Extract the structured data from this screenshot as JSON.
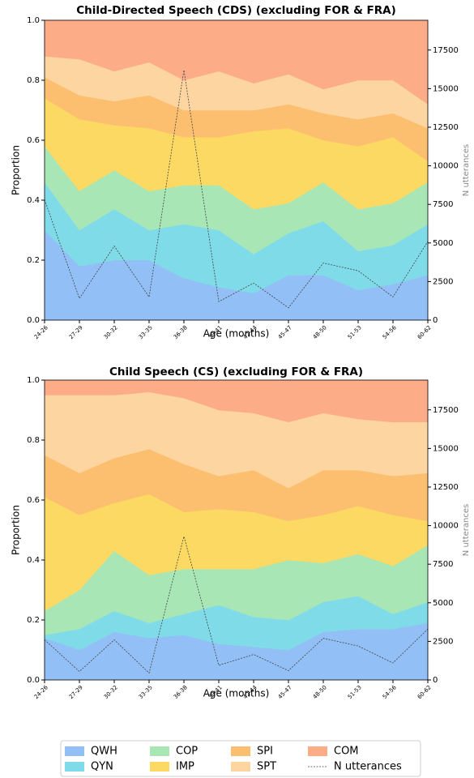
{
  "chart_data": [
    {
      "type": "stacked_area",
      "title": "Child-Directed Speech (CDS) (excluding FOR & FRA)",
      "xlabel": "Age (months)",
      "ylabel": "Proportion",
      "y2label": "N utterances",
      "categories": [
        "24-26",
        "27-29",
        "30-32",
        "33-35",
        "36-38",
        "39-41",
        "42-44",
        "45-47",
        "48-50",
        "51-53",
        "54-56",
        "60-62"
      ],
      "ylim": [
        0,
        1
      ],
      "yticks": [
        {
          "value": 0,
          "label": "0.0"
        },
        0.2,
        0.4,
        0.6,
        0.8,
        {
          "value": 1,
          "label": "1.0"
        }
      ],
      "y2lim": [
        0,
        19430
      ],
      "y2ticks": [
        0,
        2500,
        5000,
        7500,
        10000,
        12500,
        15000,
        17500
      ],
      "series": [
        {
          "name": "QWH",
          "color": "#92bff5",
          "values": [
            0.3,
            0.18,
            0.2,
            0.2,
            0.14,
            0.11,
            0.09,
            0.15,
            0.15,
            0.1,
            0.12,
            0.15
          ]
        },
        {
          "name": "QYN",
          "color": "#80dbe8",
          "values": [
            0.16,
            0.12,
            0.17,
            0.1,
            0.18,
            0.19,
            0.13,
            0.14,
            0.18,
            0.13,
            0.13,
            0.17
          ]
        },
        {
          "name": "COP",
          "color": "#a9e6b5",
          "values": [
            0.12,
            0.13,
            0.13,
            0.13,
            0.13,
            0.15,
            0.15,
            0.1,
            0.13,
            0.14,
            0.14,
            0.14
          ]
        },
        {
          "name": "IMP",
          "color": "#fcd962",
          "values": [
            0.16,
            0.24,
            0.15,
            0.21,
            0.16,
            0.16,
            0.26,
            0.25,
            0.14,
            0.21,
            0.22,
            0.07
          ]
        },
        {
          "name": "SPI",
          "color": "#fcbf70",
          "values": [
            0.07,
            0.08,
            0.08,
            0.11,
            0.09,
            0.09,
            0.07,
            0.08,
            0.09,
            0.09,
            0.08,
            0.11
          ]
        },
        {
          "name": "SPT",
          "color": "#fdd5a0",
          "values": [
            0.07,
            0.12,
            0.1,
            0.11,
            0.1,
            0.13,
            0.09,
            0.1,
            0.08,
            0.13,
            0.11,
            0.08
          ]
        },
        {
          "name": "COM",
          "color": "#fdac88",
          "values": [
            0.12,
            0.13,
            0.17,
            0.14,
            0.2,
            0.17,
            0.21,
            0.18,
            0.23,
            0.2,
            0.2,
            0.28
          ]
        },
        {
          "name": "N utterances",
          "color": "#444444",
          "axis": "y2",
          "values": [
            7800,
            1400,
            4800,
            1500,
            16200,
            1200,
            2400,
            800,
            3700,
            3200,
            1500,
            5100
          ]
        }
      ]
    },
    {
      "type": "stacked_area",
      "title": "Child Speech (CS) (excluding FOR & FRA)",
      "xlabel": "Age (months)",
      "ylabel": "Proportion",
      "y2label": "N utterances",
      "categories": [
        "24-26",
        "27-29",
        "30-32",
        "33-35",
        "36-38",
        "39-41",
        "42-44",
        "45-47",
        "48-50",
        "51-53",
        "54-56",
        "60-62"
      ],
      "ylim": [
        0,
        1
      ],
      "yticks": [
        {
          "value": 0,
          "label": "0.0"
        },
        0.2,
        0.4,
        0.6,
        0.8,
        {
          "value": 1,
          "label": "1.0"
        }
      ],
      "y2lim": [
        0,
        19430
      ],
      "y2ticks": [
        0,
        2500,
        5000,
        7500,
        10000,
        12500,
        15000,
        17500
      ],
      "series": [
        {
          "name": "QWH",
          "color": "#92bff5",
          "values": [
            0.14,
            0.1,
            0.16,
            0.14,
            0.15,
            0.12,
            0.11,
            0.1,
            0.16,
            0.17,
            0.17,
            0.19
          ]
        },
        {
          "name": "QYN",
          "color": "#80dbe8",
          "values": [
            0.01,
            0.07,
            0.07,
            0.05,
            0.07,
            0.13,
            0.1,
            0.1,
            0.1,
            0.11,
            0.05,
            0.07
          ]
        },
        {
          "name": "COP",
          "color": "#a9e6b5",
          "values": [
            0.08,
            0.13,
            0.2,
            0.16,
            0.15,
            0.12,
            0.16,
            0.2,
            0.13,
            0.14,
            0.16,
            0.19
          ]
        },
        {
          "name": "IMP",
          "color": "#fcd962",
          "values": [
            0.38,
            0.25,
            0.16,
            0.27,
            0.19,
            0.2,
            0.19,
            0.13,
            0.16,
            0.16,
            0.17,
            0.08
          ]
        },
        {
          "name": "SPI",
          "color": "#fcbf70",
          "values": [
            0.14,
            0.14,
            0.15,
            0.15,
            0.16,
            0.11,
            0.14,
            0.11,
            0.15,
            0.12,
            0.13,
            0.16
          ]
        },
        {
          "name": "SPT",
          "color": "#fdd5a0",
          "values": [
            0.2,
            0.26,
            0.21,
            0.19,
            0.22,
            0.22,
            0.19,
            0.22,
            0.19,
            0.17,
            0.18,
            0.17
          ]
        },
        {
          "name": "COM",
          "color": "#fdac88",
          "values": [
            0.05,
            0.05,
            0.05,
            0.04,
            0.06,
            0.1,
            0.11,
            0.14,
            0.11,
            0.13,
            0.14,
            0.14
          ]
        },
        {
          "name": "N utterances",
          "color": "#444444",
          "axis": "y2",
          "values": [
            2600,
            550,
            2600,
            450,
            9300,
            950,
            1650,
            600,
            2700,
            2200,
            1100,
            3300
          ]
        }
      ]
    }
  ]
}
